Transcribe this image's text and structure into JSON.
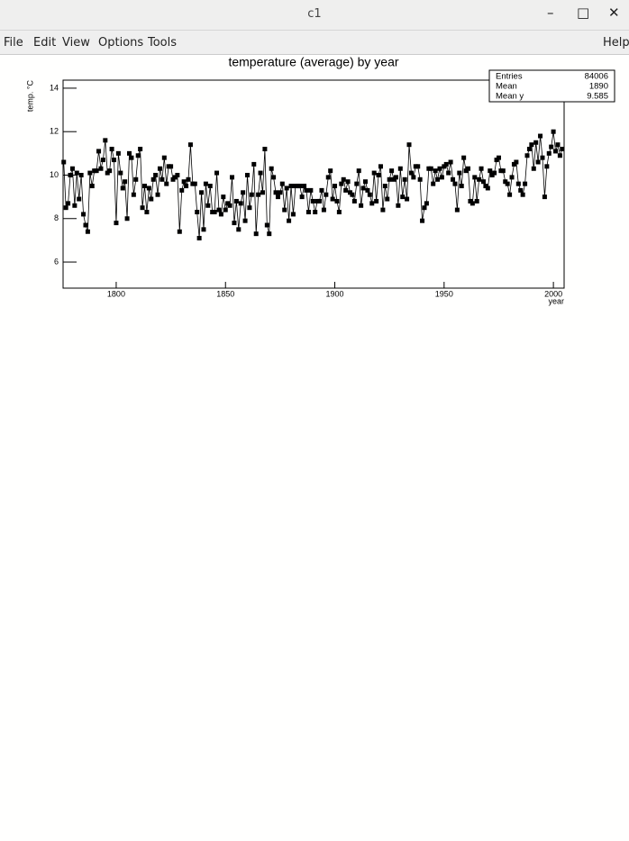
{
  "window": {
    "title": "c1",
    "menu": [
      "File",
      "Edit",
      "View",
      "Options",
      "Tools"
    ],
    "help": "Help"
  },
  "chart_data": {
    "type": "line",
    "title": "temperature (average) by year",
    "x_label": "year",
    "y_label": "temp. °C",
    "x": [
      1776,
      1777,
      1778,
      1779,
      1780,
      1781,
      1782,
      1783,
      1784,
      1785,
      1786,
      1787,
      1788,
      1789,
      1790,
      1791,
      1792,
      1793,
      1794,
      1795,
      1796,
      1797,
      1798,
      1799,
      1800,
      1801,
      1802,
      1803,
      1804,
      1805,
      1806,
      1807,
      1808,
      1809,
      1810,
      1811,
      1812,
      1813,
      1814,
      1815,
      1816,
      1817,
      1818,
      1819,
      1820,
      1821,
      1822,
      1823,
      1824,
      1825,
      1826,
      1827,
      1828,
      1829,
      1830,
      1831,
      1832,
      1833,
      1834,
      1835,
      1836,
      1837,
      1838,
      1839,
      1840,
      1841,
      1842,
      1843,
      1844,
      1845,
      1846,
      1847,
      1848,
      1849,
      1850,
      1851,
      1852,
      1853,
      1854,
      1855,
      1856,
      1857,
      1858,
      1859,
      1860,
      1861,
      1862,
      1863,
      1864,
      1865,
      1866,
      1867,
      1868,
      1869,
      1870,
      1871,
      1872,
      1873,
      1874,
      1875,
      1876,
      1877,
      1878,
      1879,
      1880,
      1881,
      1882,
      1883,
      1884,
      1885,
      1886,
      1887,
      1888,
      1889,
      1890,
      1891,
      1892,
      1893,
      1894,
      1895,
      1896,
      1897,
      1898,
      1899,
      1900,
      1901,
      1902,
      1903,
      1904,
      1905,
      1906,
      1907,
      1908,
      1909,
      1910,
      1911,
      1912,
      1913,
      1914,
      1915,
      1916,
      1917,
      1918,
      1919,
      1920,
      1921,
      1922,
      1923,
      1924,
      1925,
      1926,
      1927,
      1928,
      1929,
      1930,
      1931,
      1932,
      1933,
      1934,
      1935,
      1936,
      1937,
      1938,
      1939,
      1940,
      1941,
      1942,
      1943,
      1944,
      1945,
      1946,
      1947,
      1948,
      1949,
      1950,
      1951,
      1952,
      1953,
      1954,
      1955,
      1956,
      1957,
      1958,
      1959,
      1960,
      1961,
      1962,
      1963,
      1964,
      1965,
      1966,
      1967,
      1968,
      1969,
      1970,
      1971,
      1972,
      1973,
      1974,
      1975,
      1976,
      1977,
      1978,
      1979,
      1980,
      1981,
      1982,
      1983,
      1984,
      1985,
      1986,
      1987,
      1988,
      1989,
      1990,
      1991,
      1992,
      1993,
      1994,
      1995,
      1996,
      1997,
      1998,
      1999,
      2000,
      2001,
      2002,
      2003,
      2004
    ],
    "series": [
      {
        "color": "#000000",
        "values": [
          10.6,
          8.5,
          8.7,
          10.0,
          10.3,
          8.6,
          10.1,
          8.9,
          10.0,
          8.2,
          7.7,
          7.4,
          10.1,
          9.5,
          10.2,
          10.2,
          11.1,
          10.3,
          10.7,
          11.6,
          10.1,
          10.2,
          11.2,
          10.7,
          7.8,
          11.0,
          10.1,
          9.4,
          9.7,
          8.0,
          11.0,
          10.8,
          9.1,
          9.8,
          10.9,
          11.2,
          8.5,
          9.5,
          8.3,
          9.4,
          8.9,
          9.8,
          10.0,
          9.1,
          10.3,
          9.8,
          10.8,
          9.6,
          10.4,
          10.4,
          9.8,
          9.9,
          10.0,
          7.4,
          9.3,
          9.7,
          9.5,
          9.8,
          11.4,
          9.6,
          9.6,
          8.3,
          7.1,
          9.2,
          7.5,
          9.6,
          8.6,
          9.5,
          8.3,
          8.3,
          10.1,
          8.4,
          8.2,
          9.0,
          8.4,
          8.7,
          8.6,
          9.9,
          7.8,
          8.8,
          7.5,
          8.7,
          9.2,
          7.9,
          10.0,
          8.5,
          9.1,
          10.5,
          7.3,
          9.1,
          10.1,
          9.2,
          11.2,
          7.7,
          7.3,
          10.3,
          9.9,
          9.2,
          9.0,
          9.2,
          9.6,
          8.4,
          9.4,
          7.9,
          9.5,
          8.2,
          9.5,
          9.5,
          9.5,
          9.0,
          9.5,
          9.3,
          8.3,
          9.3,
          8.8,
          8.3,
          8.8,
          8.8,
          9.3,
          8.4,
          9.1,
          9.9,
          10.2,
          8.9,
          9.5,
          8.8,
          8.3,
          9.6,
          9.8,
          9.3,
          9.7,
          9.2,
          9.1,
          8.8,
          9.6,
          10.2,
          8.6,
          9.4,
          9.7,
          9.3,
          9.1,
          8.7,
          10.1,
          8.8,
          10.0,
          10.4,
          8.4,
          9.5,
          8.9,
          9.8,
          10.2,
          9.8,
          9.9,
          8.6,
          10.3,
          9.0,
          9.8,
          8.9,
          11.4,
          10.1,
          9.9,
          10.4,
          10.4,
          9.8,
          7.9,
          8.5,
          8.7,
          10.3,
          10.3,
          9.6,
          10.2,
          9.8,
          10.3,
          9.9,
          10.4,
          10.5,
          10.1,
          10.6,
          9.8,
          9.6,
          8.4,
          10.1,
          9.5,
          10.8,
          10.2,
          10.3,
          8.8,
          8.7,
          9.9,
          8.8,
          9.8,
          10.3,
          9.7,
          9.5,
          9.4,
          10.2,
          10.0,
          10.1,
          10.7,
          10.8,
          10.2,
          10.2,
          9.7,
          9.6,
          9.1,
          9.9,
          10.5,
          10.6,
          9.6,
          9.3,
          9.1,
          9.6,
          10.9,
          11.2,
          11.4,
          10.3,
          11.5,
          10.6,
          11.8,
          10.8,
          9.0,
          10.4,
          11.0,
          11.3,
          12.0,
          11.1,
          11.4,
          10.9,
          11.2
        ]
      }
    ],
    "xlim": [
      1775.7,
      2004.9
    ],
    "ylim": [
      4.8,
      14.37
    ],
    "xticks": [
      1800,
      1850,
      1900,
      1950,
      2000
    ],
    "yticks": [
      6,
      8,
      10,
      12,
      14
    ],
    "stats": [
      {
        "label": "Entries",
        "value": 84006
      },
      {
        "label": "Mean",
        "value": 1890
      },
      {
        "label": "Mean y",
        "value": 9.585
      }
    ]
  }
}
